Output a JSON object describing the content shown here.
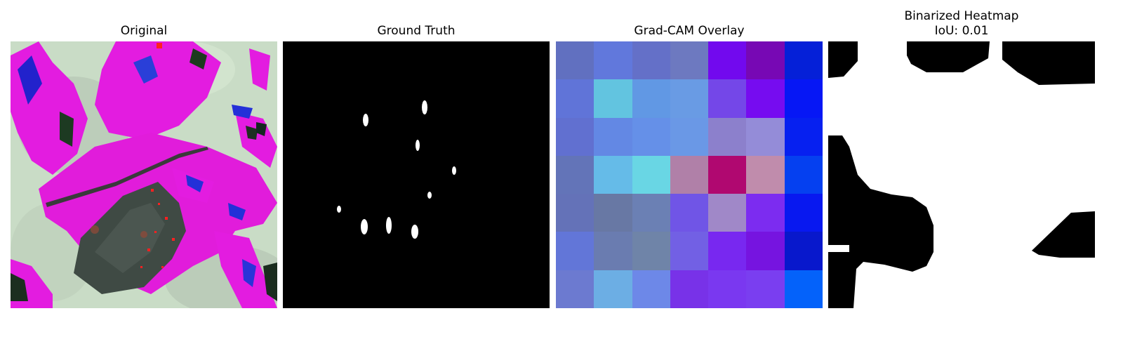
{
  "panels": {
    "original": {
      "title": "Original"
    },
    "ground_truth": {
      "title": "Ground Truth"
    },
    "gradcam": {
      "title": "Grad-CAM Overlay",
      "cell_colors": [
        [
          "#6170c0",
          "#6178dc",
          "#6470c8",
          "#6d79c0",
          "#7209ee",
          "#7708b4",
          "#0520d8"
        ],
        [
          "#6074d8",
          "#62c4e0",
          "#6198e4",
          "#699be4",
          "#7447e8",
          "#760cf0",
          "#0617f5"
        ],
        [
          "#6170d0",
          "#6388e4",
          "#6590e8",
          "#6a98e6",
          "#8c80cc",
          "#948cd8",
          "#0620f0"
        ],
        [
          "#6374b8",
          "#65bbe8",
          "#69d6e4",
          "#b080a8",
          "#b00870",
          "#c08cac",
          "#0540f0"
        ],
        [
          "#6472b8",
          "#6878a4",
          "#6b80b4",
          "#7055e6",
          "#a088c8",
          "#7c2cf0",
          "#0818f0"
        ],
        [
          "#6276d8",
          "#6a7cb0",
          "#6f84a8",
          "#7260e4",
          "#7828f0",
          "#7614e0",
          "#0818cc"
        ],
        [
          "#6c7ad0",
          "#6caee4",
          "#6d88e8",
          "#7832e8",
          "#7a38f0",
          "#7a3ef0",
          "#0462fa"
        ]
      ]
    },
    "binarized": {
      "title_line1": "Binarized Heatmap",
      "title_line2": "IoU: 0.01"
    }
  }
}
